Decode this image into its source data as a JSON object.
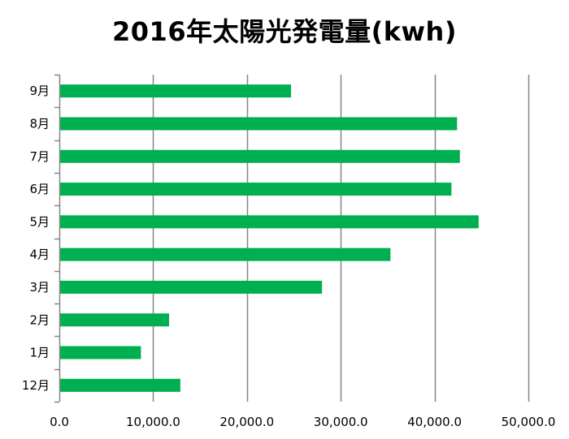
{
  "chart_data": {
    "type": "bar",
    "orientation": "horizontal",
    "title": "2016年太陽光発電量(kwh)",
    "xlabel": "",
    "ylabel": "",
    "categories": [
      "9月",
      "8月",
      "7月",
      "6月",
      "5月",
      "4月",
      "3月",
      "2月",
      "1月",
      "12月"
    ],
    "values": [
      24700,
      42400,
      42700,
      41800,
      44700,
      35300,
      28000,
      11700,
      8700,
      12900
    ],
    "xlim": [
      0,
      50000
    ],
    "x_ticks": [
      0,
      10000,
      20000,
      30000,
      40000,
      50000
    ],
    "x_tick_labels": [
      "0.0",
      "10,000.0",
      "20,000.0",
      "30,000.0",
      "40,000.0",
      "50,000.0"
    ],
    "grid": true,
    "legend": "none",
    "bar_color": "#00b050",
    "grid_color": "#868686"
  }
}
